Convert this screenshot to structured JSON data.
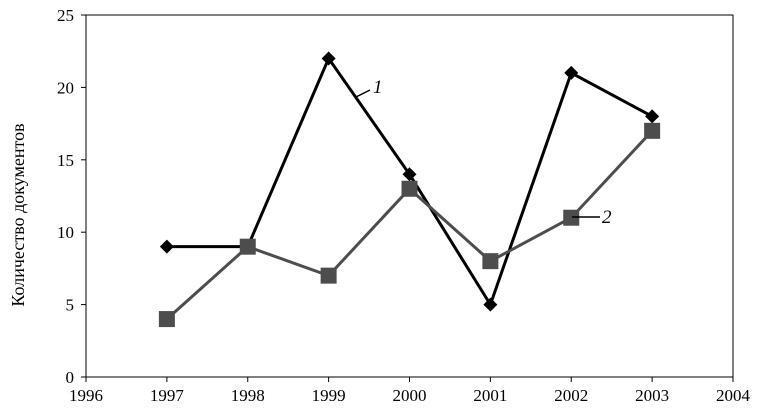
{
  "chart_data": {
    "type": "line",
    "ylabel": "Количество документов",
    "xlim": [
      1996,
      2004
    ],
    "ylim": [
      0,
      25
    ],
    "xticks": [
      1996,
      1997,
      1998,
      1999,
      2000,
      2001,
      2002,
      2003,
      2004
    ],
    "yticks": [
      0,
      5,
      10,
      15,
      20,
      25
    ],
    "grid": false,
    "series": [
      {
        "label": "1",
        "marker": "diamond",
        "color": "#000000",
        "x": [
          1997,
          1998,
          1999,
          2000,
          2001,
          2002,
          2003
        ],
        "y": [
          9,
          9,
          22,
          14,
          5,
          21,
          18
        ]
      },
      {
        "label": "2",
        "marker": "square",
        "color": "#4d4d4d",
        "x": [
          1997,
          1998,
          1999,
          2000,
          2001,
          2002,
          2003
        ],
        "y": [
          4,
          9,
          7,
          13,
          8,
          11,
          17
        ]
      }
    ]
  }
}
